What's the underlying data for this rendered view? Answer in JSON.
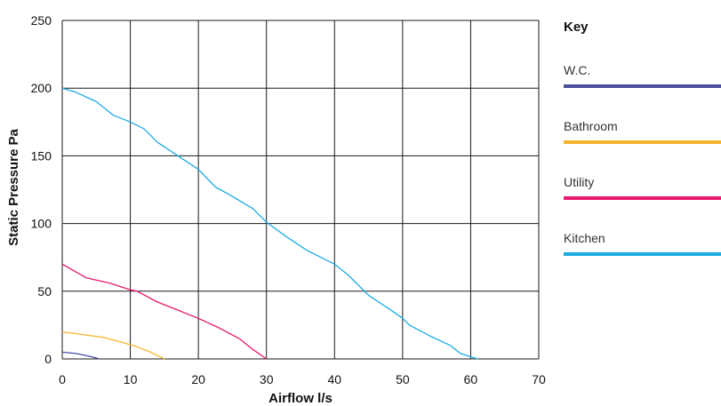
{
  "chart_data": {
    "type": "line",
    "xlabel": "Airflow l/s",
    "ylabel": "Static Pressure Pa",
    "xlim": [
      0,
      70
    ],
    "ylim": [
      0,
      250
    ],
    "x_ticks": [
      "0",
      "10",
      "20",
      "30",
      "40",
      "50",
      "60",
      "70"
    ],
    "y_ticks": [
      "0",
      "50",
      "100",
      "150",
      "200",
      "250"
    ],
    "grid": true,
    "legend": {
      "title": "Key",
      "placement": "right"
    },
    "series": [
      {
        "name": "W.C.",
        "color": "#4b4f9c",
        "points": [
          [
            0,
            5
          ],
          [
            2,
            4
          ],
          [
            4,
            2
          ],
          [
            5.5,
            0
          ]
        ]
      },
      {
        "name": "Bathroom",
        "color": "#f5b52e",
        "points": [
          [
            0,
            20
          ],
          [
            3,
            18
          ],
          [
            6,
            16
          ],
          [
            9,
            12
          ],
          [
            11,
            9
          ],
          [
            13,
            5
          ],
          [
            15,
            0
          ]
        ]
      },
      {
        "name": "Utility",
        "color": "#e6196e",
        "points": [
          [
            0,
            70
          ],
          [
            3.5,
            60
          ],
          [
            7,
            56
          ],
          [
            10,
            51
          ],
          [
            11,
            50
          ],
          [
            14,
            42
          ],
          [
            17,
            36
          ],
          [
            20,
            30
          ],
          [
            23,
            23
          ],
          [
            26,
            15
          ],
          [
            28,
            7
          ],
          [
            30,
            0
          ]
        ]
      },
      {
        "name": "Kitchen",
        "color": "#1aabe3",
        "points": [
          [
            0,
            200
          ],
          [
            2,
            197
          ],
          [
            5,
            190
          ],
          [
            7.5,
            180
          ],
          [
            10,
            175
          ],
          [
            12,
            170
          ],
          [
            14,
            160
          ],
          [
            17,
            150
          ],
          [
            20,
            140
          ],
          [
            22.5,
            127
          ],
          [
            25,
            120
          ],
          [
            28,
            111
          ],
          [
            30,
            101
          ],
          [
            33,
            90
          ],
          [
            36,
            80
          ],
          [
            40,
            70
          ],
          [
            42,
            62
          ],
          [
            45,
            47
          ],
          [
            48,
            37
          ],
          [
            50,
            30
          ],
          [
            51,
            25
          ],
          [
            54,
            17
          ],
          [
            57,
            10
          ],
          [
            58.5,
            4
          ],
          [
            61,
            0
          ]
        ]
      }
    ]
  }
}
